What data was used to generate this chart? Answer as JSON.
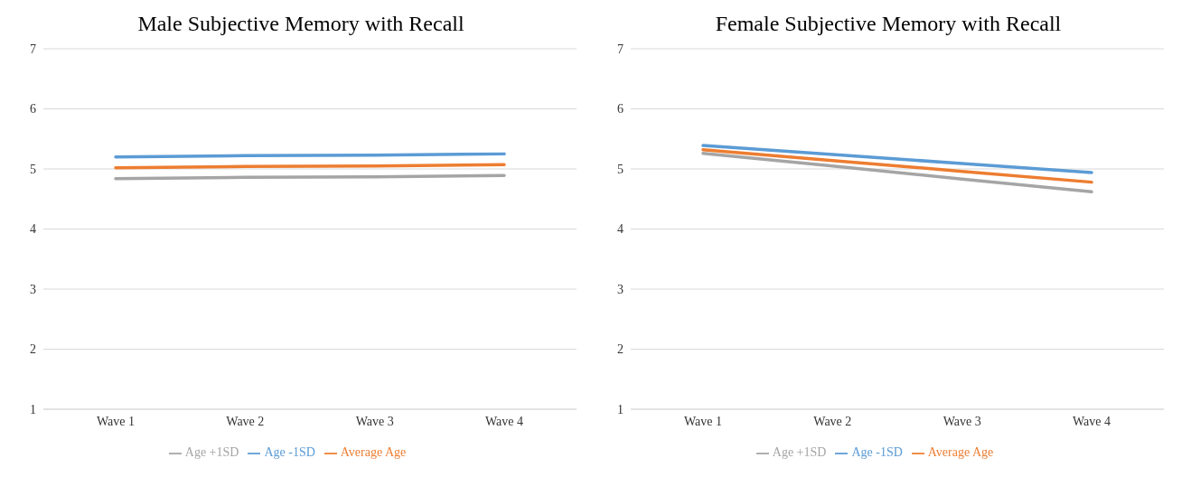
{
  "chart_data": [
    {
      "type": "line",
      "title": "Male Subjective Memory with Recall",
      "categories": [
        "Wave 1",
        "Wave 2",
        "Wave 3",
        "Wave 4"
      ],
      "series": [
        {
          "name": "Age -1SD",
          "color": "#5b9bd5",
          "values": [
            5.2,
            5.22,
            5.23,
            5.25
          ]
        },
        {
          "name": "Average Age",
          "color": "#ed7d31",
          "values": [
            5.02,
            5.04,
            5.05,
            5.07
          ]
        },
        {
          "name": "Age +1SD",
          "color": "#a5a5a5",
          "values": [
            4.84,
            4.86,
            4.87,
            4.89
          ]
        }
      ],
      "ylim": [
        1,
        7
      ],
      "yticks": [
        1,
        2,
        3,
        4,
        5,
        6,
        7
      ],
      "grid": "y",
      "legend": "bottom",
      "marker": "none"
    },
    {
      "type": "line",
      "title": "Female Subjective Memory with Recall",
      "categories": [
        "Wave 1",
        "Wave 2",
        "Wave 3",
        "Wave 4"
      ],
      "series": [
        {
          "name": "Age -1SD",
          "color": "#5b9bd5",
          "values": [
            5.39,
            5.24,
            5.09,
            4.94
          ]
        },
        {
          "name": "Average Age",
          "color": "#ed7d31",
          "values": [
            5.32,
            5.14,
            4.96,
            4.78
          ]
        },
        {
          "name": "Age +1SD",
          "color": "#a5a5a5",
          "values": [
            5.26,
            5.05,
            4.83,
            4.62
          ]
        }
      ],
      "ylim": [
        1,
        7
      ],
      "yticks": [
        1,
        2,
        3,
        4,
        5,
        6,
        7
      ],
      "grid": "y",
      "legend": "bottom",
      "marker": "none"
    }
  ]
}
